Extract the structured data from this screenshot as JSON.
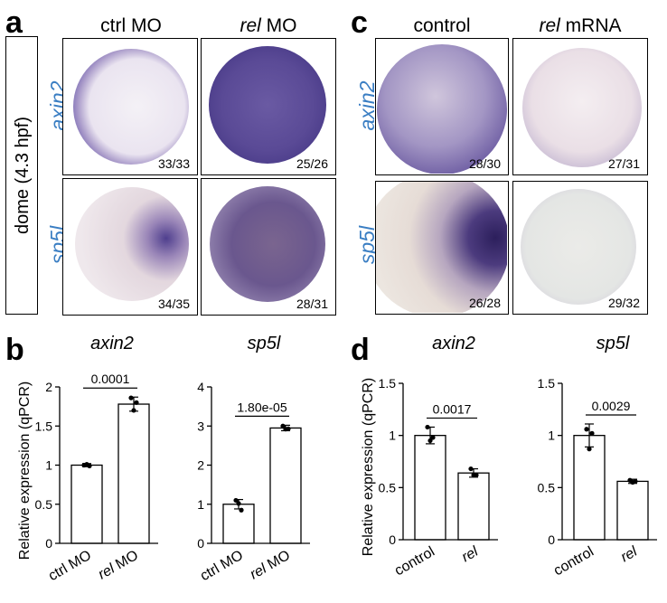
{
  "panel_a": {
    "letter": "a",
    "stage_label": "dome (4.3 hpf)",
    "col_headers": [
      {
        "italic": "",
        "rest": "ctrl MO"
      },
      {
        "italic": "rel",
        "rest": " MO"
      }
    ],
    "row_genes": [
      "axin2",
      "sp5l"
    ],
    "counts": [
      [
        "33/33",
        "25/26"
      ],
      [
        "34/35",
        "28/31"
      ]
    ]
  },
  "panel_c": {
    "letter": "c",
    "col_headers": [
      {
        "italic": "",
        "rest": "control"
      },
      {
        "italic": "rel",
        "rest": " mRNA"
      }
    ],
    "row_genes": [
      "axin2",
      "sp5l"
    ],
    "counts": [
      [
        "28/30",
        "27/31"
      ],
      [
        "26/28",
        "29/32"
      ]
    ]
  },
  "panel_b": {
    "letter": "b"
  },
  "panel_d": {
    "letter": "d"
  },
  "colors": {
    "gene_label": "#3a7ec3",
    "stain": "#5a4a94"
  },
  "chart_data": [
    {
      "panel": "b",
      "type": "bar",
      "title": "axin2",
      "ylabel": "Relative expression (qPCR)",
      "categories": [
        "ctrl MO",
        "rel MO"
      ],
      "category_italic": [
        "",
        "rel"
      ],
      "values": [
        1.0,
        1.78
      ],
      "error": [
        0.02,
        0.09
      ],
      "points": [
        [
          1.0,
          0.99,
          1.01
        ],
        [
          1.86,
          1.8,
          1.7
        ]
      ],
      "ylim": [
        0,
        2
      ],
      "yticks": [
        "0",
        "0.5",
        "1",
        "1.5",
        "2"
      ],
      "pvalue": "0.0001"
    },
    {
      "panel": "b",
      "type": "bar",
      "title": "sp5l",
      "ylabel": "",
      "categories": [
        "ctrl MO",
        "rel MO"
      ],
      "category_italic": [
        "",
        "rel"
      ],
      "values": [
        1.0,
        2.95
      ],
      "error": [
        0.12,
        0.07
      ],
      "points": [
        [
          1.1,
          0.85,
          1.02
        ],
        [
          3.0,
          2.93,
          2.92
        ]
      ],
      "ylim": [
        0,
        4
      ],
      "yticks": [
        "0",
        "1",
        "2",
        "3",
        "4"
      ],
      "pvalue": "1.80e-05"
    },
    {
      "panel": "d",
      "type": "bar",
      "title": "axin2",
      "ylabel": "Relative expression (qPCR)",
      "categories": [
        "control",
        "rel"
      ],
      "category_italic": [
        "",
        "rel"
      ],
      "values": [
        1.0,
        0.64
      ],
      "error": [
        0.08,
        0.04
      ],
      "points": [
        [
          1.08,
          0.98,
          0.95
        ],
        [
          0.68,
          0.62,
          0.62
        ]
      ],
      "ylim": [
        0,
        1.5
      ],
      "yticks": [
        "0",
        "0.5",
        "1",
        "1.5"
      ],
      "pvalue": "0.0017"
    },
    {
      "panel": "d",
      "type": "bar",
      "title": "sp5l",
      "ylabel": "",
      "categories": [
        "control",
        "rel"
      ],
      "category_italic": [
        "",
        "rel"
      ],
      "values": [
        1.0,
        0.56
      ],
      "error": [
        0.11,
        0.02
      ],
      "points": [
        [
          1.06,
          1.02,
          0.87
        ],
        [
          0.57,
          0.56,
          0.55
        ]
      ],
      "ylim": [
        0,
        1.5
      ],
      "yticks": [
        "0",
        "0.5",
        "1",
        "1.5"
      ],
      "pvalue": "0.0029"
    }
  ]
}
